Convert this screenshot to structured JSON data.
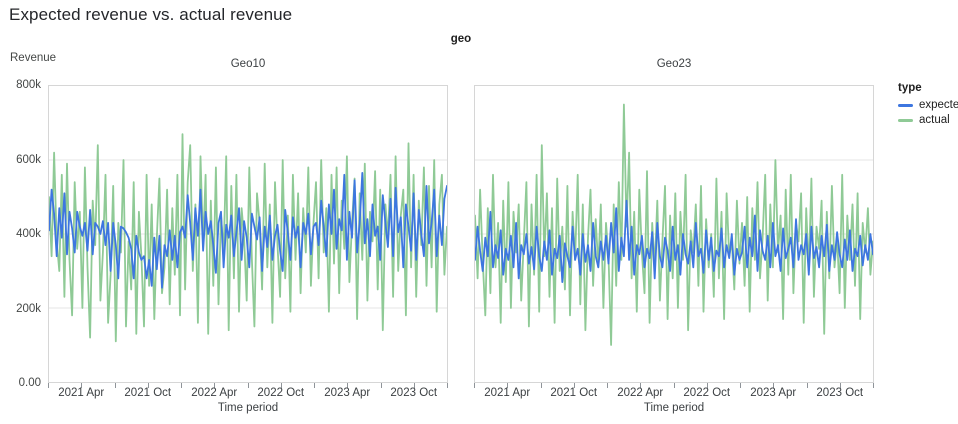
{
  "page": {
    "title": "Expected revenue vs. actual revenue"
  },
  "facet": {
    "label": "geo"
  },
  "axes": {
    "y_title": "Revenue",
    "x_title": "Time period",
    "y_ticks": [
      {
        "label": "800k",
        "value": 800
      },
      {
        "label": "600k",
        "value": 600
      },
      {
        "label": "400k",
        "value": 400
      },
      {
        "label": "200k",
        "value": 200
      },
      {
        "label": "0.00",
        "value": 0
      }
    ],
    "x_ticks": [
      {
        "label": "2021 Apr",
        "month": 3
      },
      {
        "label": "2021 Oct",
        "month": 9
      },
      {
        "label": "2022 Apr",
        "month": 15
      },
      {
        "label": "2022 Oct",
        "month": 21
      },
      {
        "label": "2023 Apr",
        "month": 27
      },
      {
        "label": "2023 Oct",
        "month": 33
      }
    ],
    "x_minor_tick_months": [
      0,
      3,
      6,
      9,
      12,
      15,
      18,
      21,
      24,
      27,
      30,
      33,
      36
    ],
    "months_span": 36
  },
  "legend": {
    "title": "type",
    "items": [
      {
        "label": "expected",
        "color": "#3d76e0"
      },
      {
        "label": "actual",
        "color": "#8fca96"
      }
    ]
  },
  "colors": {
    "expected": "#3d76e0",
    "actual": "#8fca96",
    "grid": "#e4e4e4",
    "border": "#d6d6d6",
    "text": "#3c4043"
  },
  "chart_data": [
    {
      "type": "line",
      "title": "Geo10",
      "x_start": "2021-01",
      "x_end": "2023-12",
      "x_unit": "week",
      "unit": "thousands (k) of revenue",
      "ylim_k": [
        0,
        800
      ],
      "series": [
        {
          "name": "expected",
          "values": [
            410,
            520,
            455,
            340,
            470,
            390,
            510,
            345,
            460,
            415,
            350,
            460,
            420,
            395,
            430,
            355,
            465,
            345,
            430,
            420,
            400,
            435,
            370,
            430,
            300,
            430,
            370,
            280,
            420,
            415,
            405,
            390,
            360,
            280,
            395,
            350,
            330,
            340,
            280,
            330,
            260,
            390,
            305,
            395,
            255,
            370,
            340,
            410,
            330,
            395,
            310,
            405,
            420,
            390,
            505,
            430,
            330,
            470,
            395,
            520,
            355,
            460,
            400,
            435,
            370,
            295,
            430,
            460,
            310,
            425,
            390,
            450,
            340,
            405,
            470,
            330,
            435,
            390,
            310,
            455,
            420,
            385,
            445,
            300,
            420,
            365,
            450,
            330,
            395,
            425,
            355,
            300,
            465,
            405,
            330,
            445,
            390,
            420,
            310,
            430,
            400,
            455,
            345,
            420,
            430,
            370,
            490,
            420,
            340,
            480,
            400,
            520,
            360,
            440,
            410,
            560,
            330,
            460,
            390,
            545,
            350,
            430,
            565,
            375,
            440,
            340,
            480,
            395,
            420,
            330,
            505,
            430,
            365,
            495,
            340,
            525,
            405,
            445,
            310,
            480,
            420,
            355,
            510,
            330,
            465,
            400,
            340,
            530,
            375,
            430,
            520,
            340,
            450,
            370,
            495,
            530
          ]
        },
        {
          "name": "actual",
          "values": [
            500,
            340,
            620,
            380,
            300,
            560,
            230,
            590,
            330,
            180,
            540,
            360,
            460,
            200,
            580,
            310,
            120,
            490,
            370,
            640,
            220,
            350,
            560,
            160,
            290,
            530,
            110,
            430,
            350,
            600,
            150,
            380,
            250,
            540,
            130,
            460,
            340,
            150,
            560,
            260,
            480,
            170,
            390,
            550,
            240,
            310,
            520,
            210,
            470,
            290,
            560,
            180,
            670,
            250,
            540,
            640,
            300,
            480,
            160,
            610,
            370,
            560,
            130,
            490,
            260,
            580,
            210,
            450,
            350,
            610,
            140,
            530,
            280,
            560,
            190,
            470,
            390,
            220,
            580,
            330,
            150,
            510,
            430,
            250,
            590,
            310,
            480,
            160,
            540,
            370,
            230,
            600,
            280,
            450,
            190,
            560,
            330,
            510,
            240,
            470,
            350,
            580,
            260,
            430,
            540,
            280,
            600,
            350,
            470,
            190,
            560,
            320,
            580,
            240,
            490,
            360,
            610,
            270,
            430,
            550,
            170,
            510,
            330,
            590,
            220,
            460,
            380,
            570,
            250,
            520,
            140,
            480,
            390,
            560,
            230,
            610,
            300,
            450,
            520,
            180,
            645,
            310,
            560,
            230,
            490,
            370,
            580,
            260,
            530,
            310,
            600,
            190,
            480,
            560,
            290,
            420
          ]
        }
      ]
    },
    {
      "type": "line",
      "title": "Geo23",
      "x_start": "2021-01",
      "x_end": "2023-12",
      "x_unit": "week",
      "unit": "thousands (k) of revenue",
      "ylim_k": [
        0,
        800
      ],
      "series": [
        {
          "name": "expected",
          "values": [
            330,
            420,
            355,
            300,
            390,
            340,
            460,
            310,
            370,
            335,
            410,
            290,
            360,
            330,
            395,
            310,
            430,
            280,
            370,
            345,
            400,
            320,
            365,
            305,
            420,
            340,
            300,
            380,
            330,
            410,
            290,
            360,
            335,
            395,
            270,
            375,
            340,
            310,
            420,
            330,
            360,
            290,
            400,
            325,
            370,
            300,
            430,
            340,
            310,
            380,
            330,
            395,
            320,
            430,
            350,
            470,
            300,
            390,
            340,
            490,
            330,
            420,
            290,
            370,
            345,
            395,
            310,
            360,
            335,
            405,
            280,
            430,
            340,
            310,
            390,
            355,
            300,
            420,
            330,
            370,
            290,
            400,
            345,
            320,
            380,
            310,
            430,
            340,
            360,
            295,
            410,
            330,
            390,
            300,
            355,
            340,
            415,
            310,
            370,
            335,
            400,
            290,
            360,
            330,
            350,
            420,
            310,
            390,
            340,
            450,
            300,
            410,
            355,
            330,
            395,
            310,
            430,
            340,
            370,
            300,
            415,
            335,
            360,
            390,
            310,
            440,
            330,
            370,
            345,
            400,
            290,
            420,
            335,
            365,
            310,
            395,
            340,
            425,
            300,
            370,
            330,
            405,
            345,
            310,
            385,
            330,
            410,
            300,
            360,
            340,
            395,
            315,
            370,
            330,
            400,
            345
          ]
        },
        {
          "name": "actual",
          "values": [
            450,
            280,
            520,
            330,
            180,
            470,
            240,
            560,
            310,
            430,
            160,
            490,
            270,
            540,
            200,
            460,
            350,
            480,
            220,
            380,
            540,
            150,
            480,
            290,
            560,
            190,
            640,
            340,
            510,
            230,
            470,
            160,
            550,
            300,
            420,
            250,
            530,
            180,
            460,
            330,
            560,
            210,
            480,
            140,
            390,
            520,
            260,
            440,
            310,
            480,
            200,
            430,
            340,
            100,
            480,
            260,
            540,
            330,
            750,
            420,
            620,
            280,
            460,
            190,
            520,
            350,
            240,
            570,
            160,
            430,
            310,
            490,
            220,
            380,
            530,
            170,
            450,
            280,
            510,
            200,
            460,
            330,
            560,
            140,
            410,
            350,
            480,
            260,
            530,
            190,
            440,
            310,
            400,
            230,
            550,
            280,
            460,
            170,
            510,
            340,
            380,
            250,
            490,
            320,
            430,
            260,
            500,
            190,
            470,
            330,
            540,
            280,
            390,
            560,
            220,
            480,
            310,
            600,
            350,
            450,
            170,
            520,
            290,
            560,
            240,
            430,
            380,
            510,
            160,
            470,
            300,
            550,
            230,
            420,
            360,
            490,
            130,
            460,
            280,
            530,
            310,
            390,
            240,
            560,
            200,
            450,
            330,
            480,
            260,
            510,
            170,
            430,
            350,
            470,
            290,
            380
          ]
        }
      ]
    }
  ]
}
